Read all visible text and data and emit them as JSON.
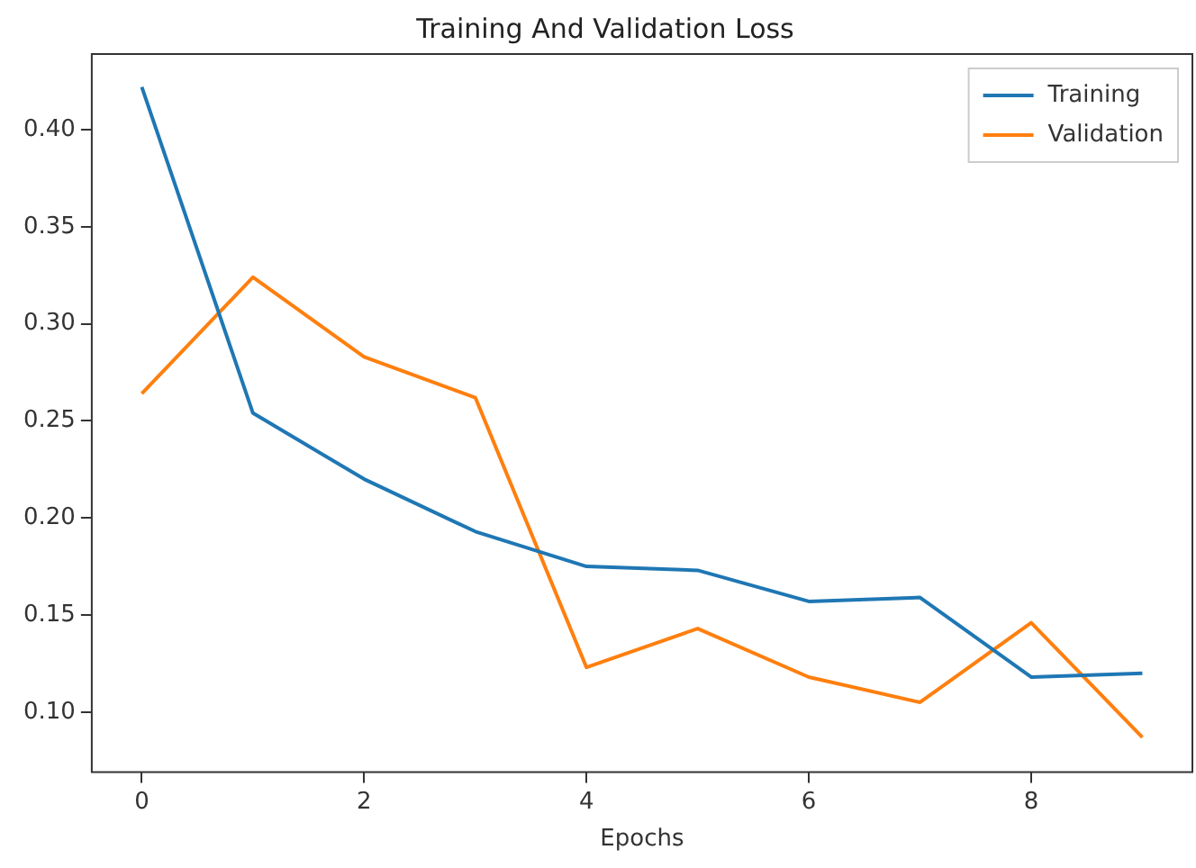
{
  "chart_data": {
    "type": "line",
    "title": "Training And Validation Loss",
    "xlabel": "Epochs",
    "x": [
      0,
      1,
      2,
      3,
      4,
      5,
      6,
      7,
      8,
      9
    ],
    "series": [
      {
        "name": "Training",
        "color": "#1f77b4",
        "values": [
          0.422,
          0.254,
          0.22,
          0.193,
          0.175,
          0.173,
          0.157,
          0.159,
          0.118,
          0.12
        ]
      },
      {
        "name": "Validation",
        "color": "#ff7f0e",
        "values": [
          0.264,
          0.324,
          0.283,
          0.262,
          0.123,
          0.143,
          0.118,
          0.105,
          0.146,
          0.087
        ]
      }
    ],
    "xlim": [
      -0.45,
      9.45
    ],
    "xticks": [
      0,
      2,
      4,
      6,
      8
    ],
    "ylim": [
      0.069,
      0.439
    ],
    "yticks": [
      {
        "value": 0.1,
        "label": "0.10"
      },
      0.15,
      {
        "value": 0.2,
        "label": "0.20"
      },
      0.25,
      {
        "value": 0.3,
        "label": "0.30"
      },
      0.35,
      {
        "value": 0.4,
        "label": "0.40"
      }
    ],
    "grid": false,
    "legend": "top right",
    "marker": "none",
    "line_style": "solid"
  }
}
